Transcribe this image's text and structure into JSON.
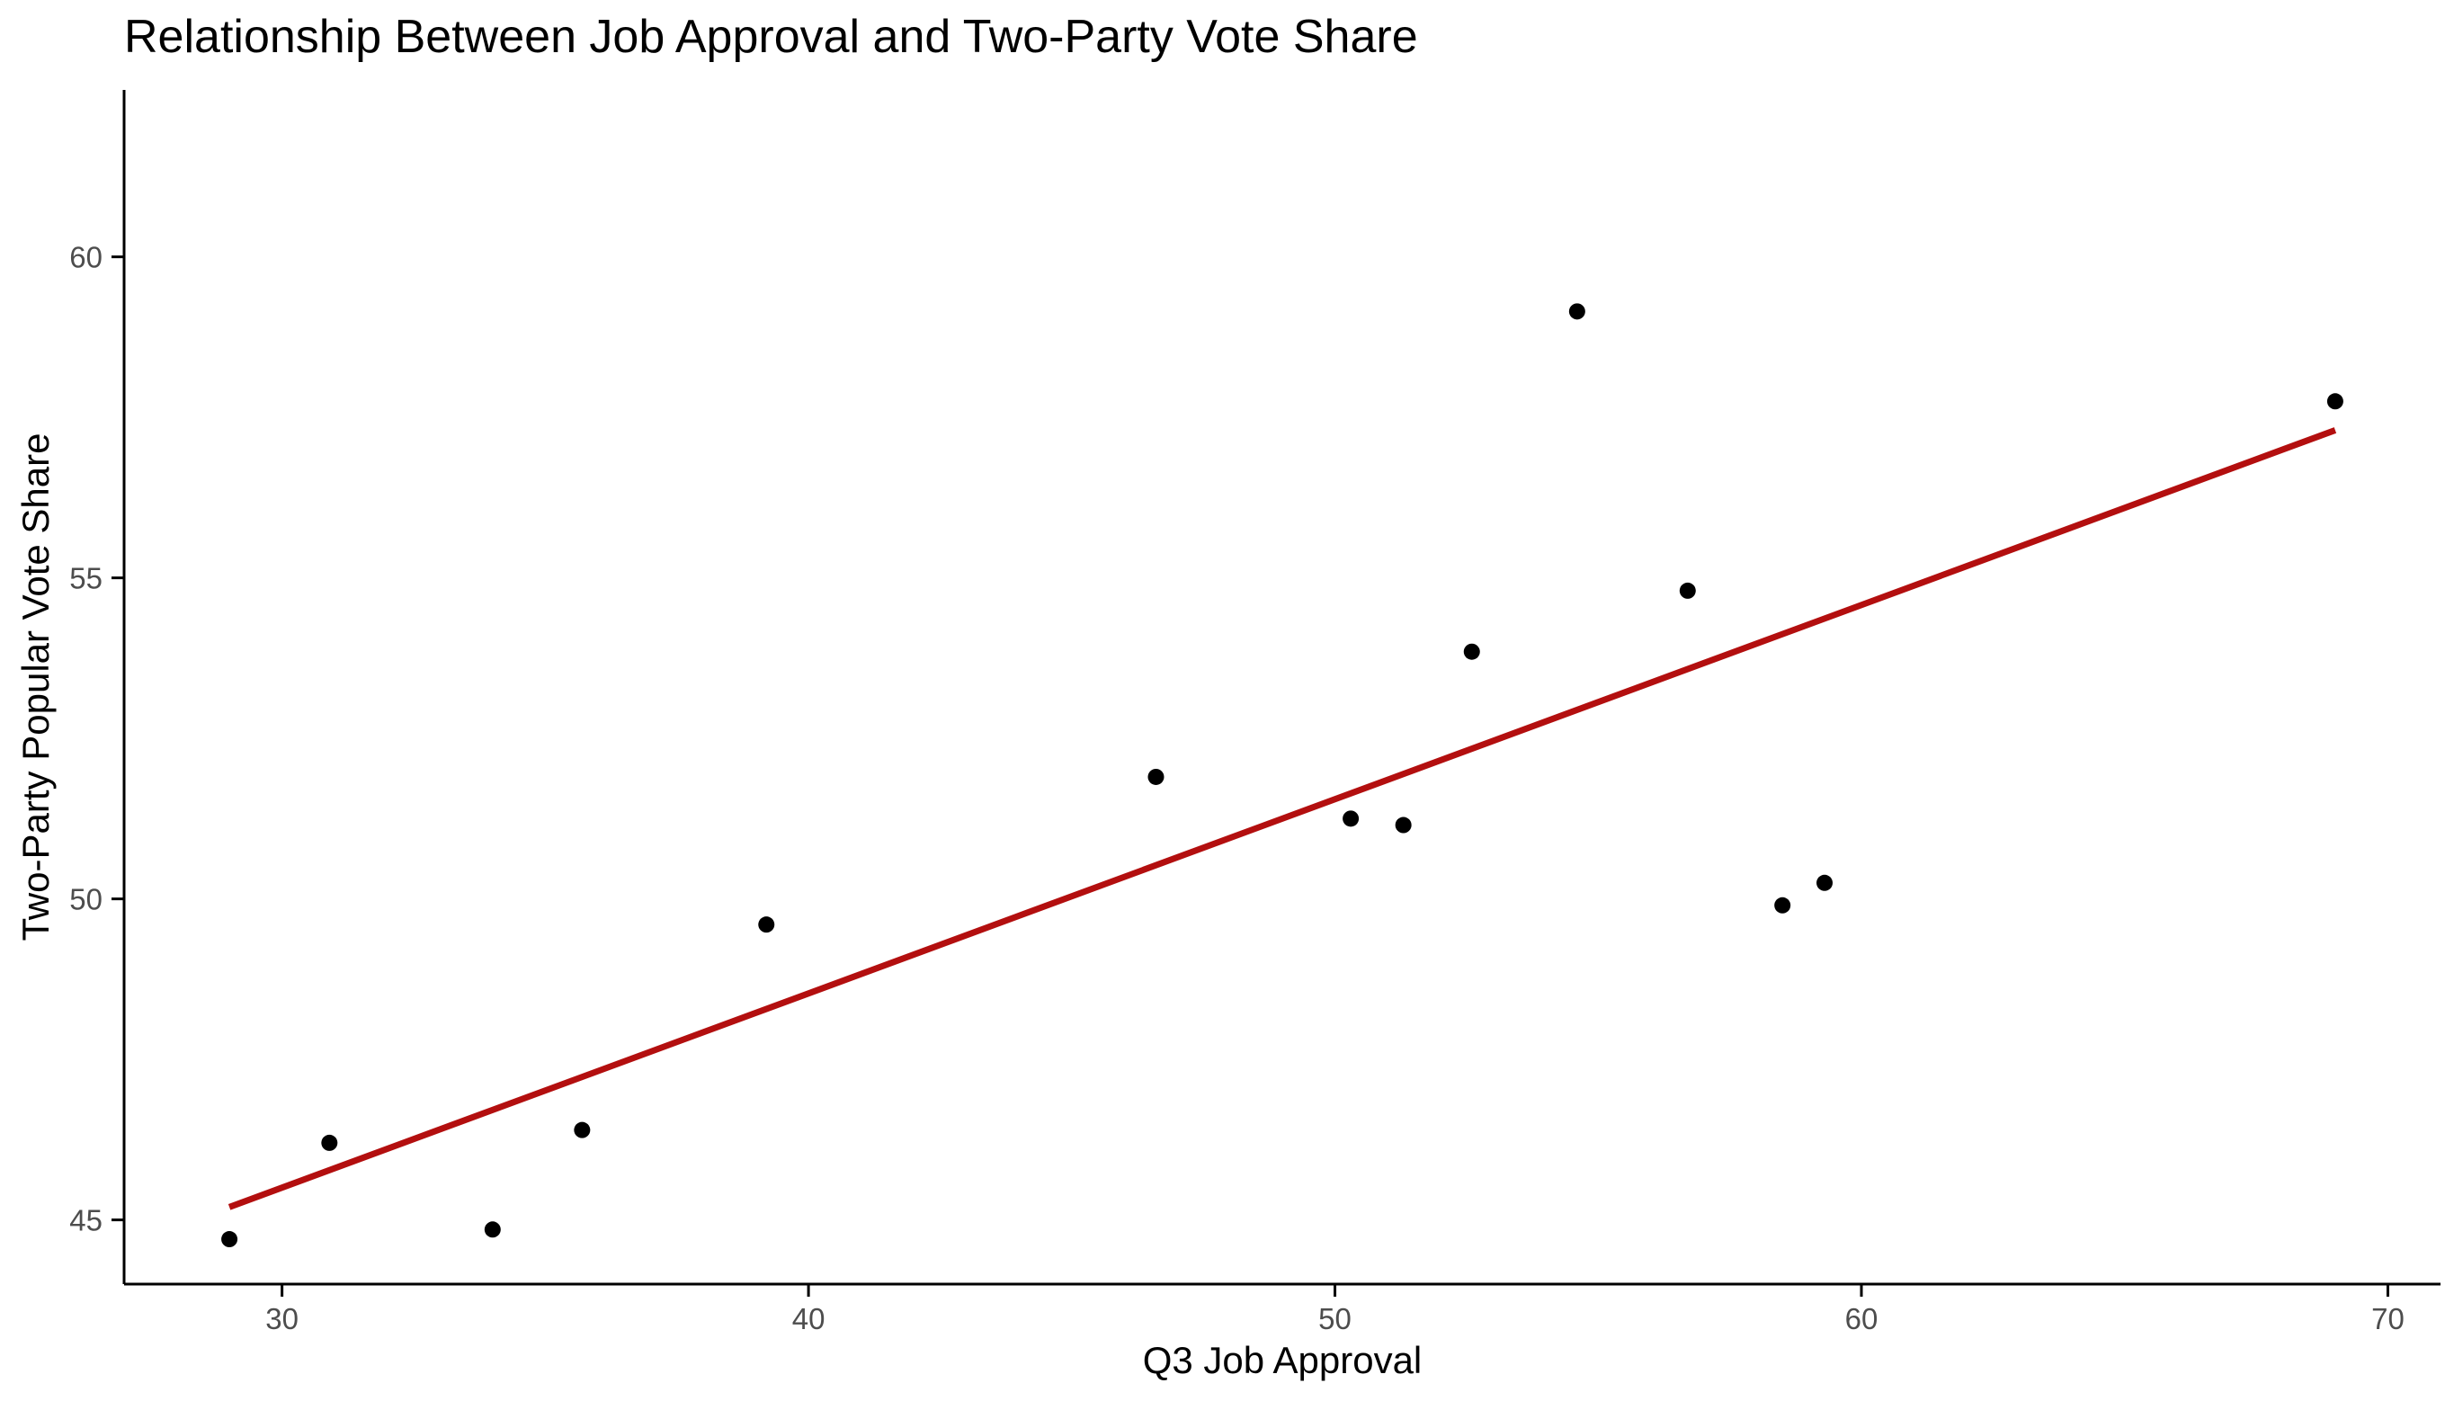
{
  "chart_data": {
    "type": "scatter",
    "title": "Relationship Between Job Approval and Two-Party Vote Share",
    "xlabel": "Q3 Job Approval",
    "ylabel": "Two-Party Popular Vote Share",
    "xlim": [
      27,
      71
    ],
    "ylim": [
      44,
      62.6
    ],
    "x_ticks": [
      30,
      40,
      50,
      60,
      70
    ],
    "y_ticks": [
      45,
      50,
      55,
      60
    ],
    "grid": false,
    "legend": "none",
    "colors": {
      "points": "#000000",
      "fit_line": "#b30f0f",
      "axis": "#000000",
      "tick_text": "#4d4d4d"
    },
    "series": [
      {
        "values": [
          {
            "x": 29.0,
            "y": 44.7
          },
          {
            "x": 30.9,
            "y": 46.2
          },
          {
            "x": 34.0,
            "y": 44.85
          },
          {
            "x": 35.7,
            "y": 46.4
          },
          {
            "x": 39.2,
            "y": 49.6
          },
          {
            "x": 46.6,
            "y": 51.9
          },
          {
            "x": 50.3,
            "y": 51.25
          },
          {
            "x": 51.3,
            "y": 51.15
          },
          {
            "x": 52.6,
            "y": 53.85
          },
          {
            "x": 54.6,
            "y": 59.15
          },
          {
            "x": 56.7,
            "y": 54.8
          },
          {
            "x": 58.5,
            "y": 49.9
          },
          {
            "x": 59.3,
            "y": 50.25
          },
          {
            "x": 69.0,
            "y": 57.75
          }
        ]
      }
    ],
    "fit_line": {
      "x": [
        29.0,
        69.0
      ],
      "y": [
        45.2,
        57.3
      ]
    }
  }
}
